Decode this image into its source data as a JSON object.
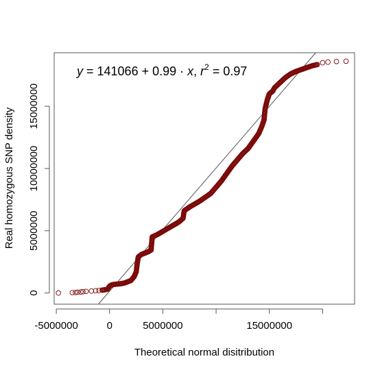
{
  "chart_data": {
    "type": "scatter",
    "title": "",
    "xlabel": "Theoretical normal disitribution",
    "ylabel": "Real homozygous SNP density",
    "xlim": [
      -5200000,
      23000000
    ],
    "ylim": [
      -900000,
      19300000
    ],
    "x_ticks": [
      -5000000,
      0,
      5000000,
      10000000,
      15000000,
      20000000
    ],
    "x_tick_labels": [
      "-5000000",
      "0",
      "5000000",
      "",
      "15000000",
      ""
    ],
    "y_ticks": [
      0,
      5000000,
      10000000,
      15000000
    ],
    "y_tick_labels": [
      "0",
      "5000000",
      "10000000",
      "15000000"
    ],
    "grid": false,
    "legend": "none",
    "annotation": {
      "parts": [
        "y",
        " = 141066 + 0.99 · ",
        "x",
        ",  ",
        "r",
        "2",
        " = 0.97"
      ],
      "position": "top-left"
    },
    "fit_line": {
      "intercept": 141066,
      "slope": 0.99,
      "r_squared": 0.97
    },
    "colors": {
      "points": "#7b0a0a",
      "fit_line": "#555555",
      "axes": "#555555"
    },
    "series": [
      {
        "values": [
          [
            -4800000,
            0
          ],
          [
            -3500000,
            25000
          ],
          [
            -3200000,
            40000
          ],
          [
            -3000000,
            60000
          ],
          [
            -2700000,
            80000
          ],
          [
            -2500000,
            100000
          ],
          [
            -2200000,
            130000
          ],
          [
            -1700000,
            160000
          ],
          [
            -1300000,
            180000
          ],
          [
            -1000000,
            200000
          ],
          [
            -700000,
            230000
          ],
          [
            -400000,
            260000
          ],
          [
            -200000,
            300000
          ],
          [
            0,
            550000
          ],
          [
            200000,
            650000
          ],
          [
            500000,
            700000
          ],
          [
            800000,
            720000
          ],
          [
            1100000,
            750000
          ],
          [
            1400000,
            800000
          ],
          [
            1700000,
            900000
          ],
          [
            2000000,
            1000000
          ],
          [
            2300000,
            1300000
          ],
          [
            2500000,
            1700000
          ],
          [
            2600000,
            2400000
          ],
          [
            2700000,
            2900000
          ],
          [
            3000000,
            3100000
          ],
          [
            3300000,
            3200000
          ],
          [
            3600000,
            3300000
          ],
          [
            3900000,
            3450000
          ],
          [
            4000000,
            4500000
          ],
          [
            4500000,
            4700000
          ],
          [
            5000000,
            4950000
          ],
          [
            5500000,
            5200000
          ],
          [
            6000000,
            5450000
          ],
          [
            6500000,
            5700000
          ],
          [
            6900000,
            6000000
          ],
          [
            7000000,
            6600000
          ],
          [
            7500000,
            6900000
          ],
          [
            8000000,
            7150000
          ],
          [
            8500000,
            7400000
          ],
          [
            9000000,
            7700000
          ],
          [
            9500000,
            8000000
          ],
          [
            10000000,
            8500000
          ],
          [
            10500000,
            9000000
          ],
          [
            11000000,
            9600000
          ],
          [
            11500000,
            10200000
          ],
          [
            12000000,
            10700000
          ],
          [
            12500000,
            11200000
          ],
          [
            13000000,
            11600000
          ],
          [
            13500000,
            12200000
          ],
          [
            14000000,
            12800000
          ],
          [
            14300000,
            13400000
          ],
          [
            14500000,
            13900000
          ],
          [
            14600000,
            14800000
          ],
          [
            14800000,
            15500000
          ],
          [
            15000000,
            16000000
          ],
          [
            15300000,
            16200000
          ],
          [
            15500000,
            16500000
          ],
          [
            16000000,
            16900000
          ],
          [
            16500000,
            17300000
          ],
          [
            17000000,
            17600000
          ],
          [
            17500000,
            17800000
          ],
          [
            18000000,
            17950000
          ],
          [
            18500000,
            18100000
          ],
          [
            19000000,
            18250000
          ],
          [
            19500000,
            18350000
          ],
          [
            20000000,
            18500000
          ],
          [
            20500000,
            18550000
          ],
          [
            21300000,
            18600000
          ],
          [
            22200000,
            18620000
          ]
        ]
      }
    ]
  }
}
